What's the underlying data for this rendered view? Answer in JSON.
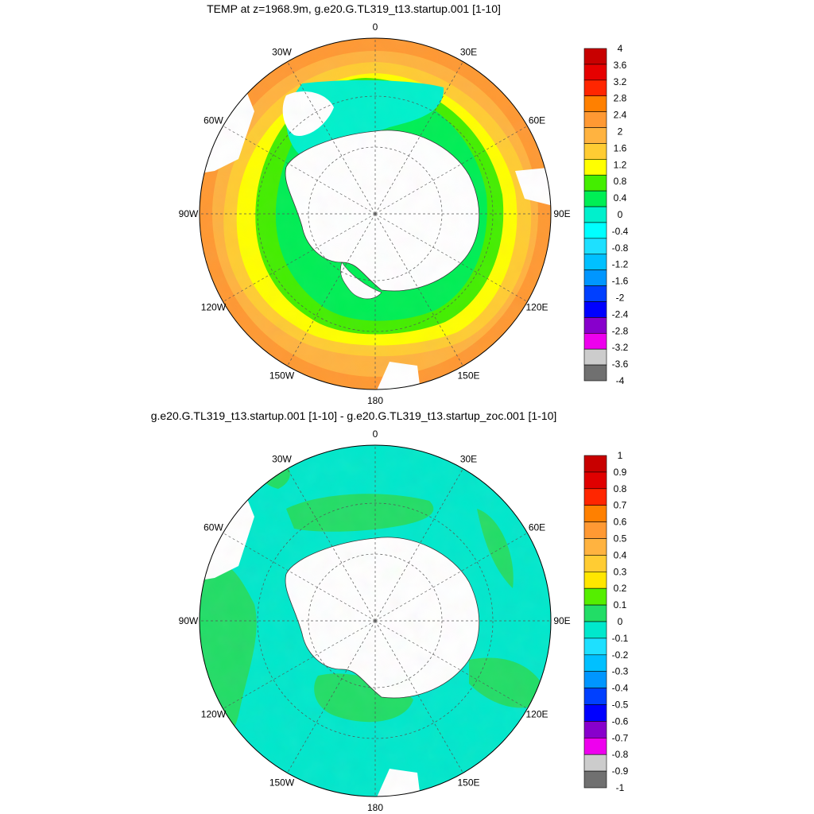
{
  "panels": [
    {
      "id": "top",
      "title": "TEMP at z=1968.9m, g.e20.G.TL319_t13.startup.001 [1-10]",
      "field": "absolute",
      "colorbar": {
        "labels": [
          "4",
          "3.6",
          "3.2",
          "2.8",
          "2.4",
          "2",
          "1.6",
          "1.2",
          "0.8",
          "0.4",
          "0",
          "-0.4",
          "-0.8",
          "-1.2",
          "-1.6",
          "-2",
          "-2.4",
          "-2.8",
          "-3.2",
          "-3.6",
          "-4"
        ],
        "colors": [
          "#c80000",
          "#e60000",
          "#ff2600",
          "#ff8000",
          "#ff9933",
          "#ffb340",
          "#ffcc33",
          "#ffff00",
          "#44ee00",
          "#00ee55",
          "#00f0cc",
          "#00ffff",
          "#1ee0ff",
          "#00c0ff",
          "#0096ff",
          "#0040ff",
          "#0000ff",
          "#8800cc",
          "#ee00ee",
          "#cccccc",
          "#707070"
        ]
      }
    },
    {
      "id": "bottom",
      "title": "g.e20.G.TL319_t13.startup.001 [1-10] - g.e20.G.TL319_t13.startup_zoc.001 [1-10]",
      "field": "difference",
      "colorbar": {
        "labels": [
          "1",
          "0.9",
          "0.8",
          "0.7",
          "0.6",
          "0.5",
          "0.4",
          "0.3",
          "0.2",
          "0.1",
          "0",
          "-0.1",
          "-0.2",
          "-0.3",
          "-0.4",
          "-0.5",
          "-0.6",
          "-0.7",
          "-0.8",
          "-0.9",
          "-1"
        ],
        "colors": [
          "#c80000",
          "#e00000",
          "#ff2600",
          "#ff8000",
          "#ff9933",
          "#ffb340",
          "#ffcc33",
          "#ffe600",
          "#55ee00",
          "#22dd66",
          "#00e8cc",
          "#1ee0ff",
          "#00c0ff",
          "#0096ff",
          "#0040ff",
          "#0000ff",
          "#8800cc",
          "#ee00ee",
          "#cccccc",
          "#707070"
        ]
      }
    }
  ],
  "longitude_labels": [
    "0",
    "30E",
    "60E",
    "90E",
    "120E",
    "150E",
    "180",
    "150W",
    "120W",
    "90W",
    "60W",
    "30W"
  ]
}
